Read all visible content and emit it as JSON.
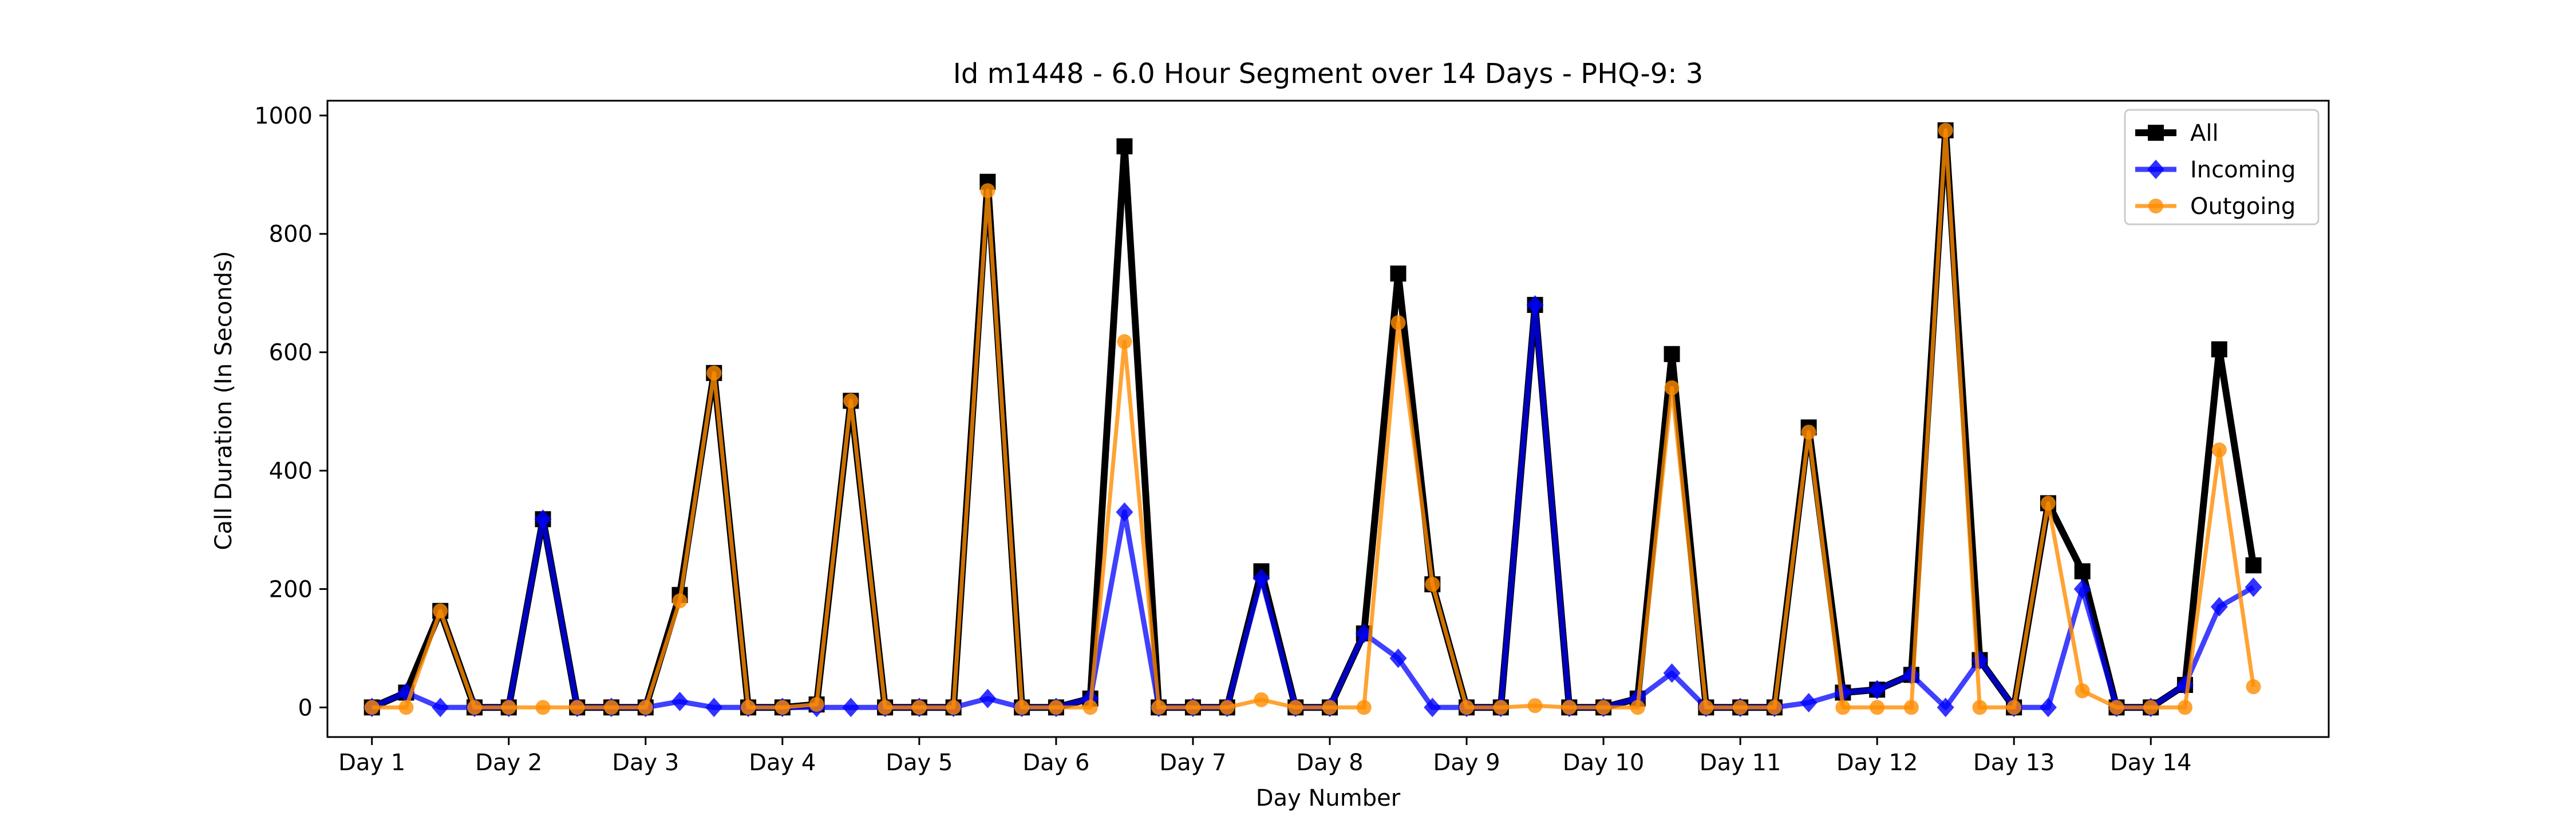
{
  "chart_data": {
    "type": "line",
    "title": "Id m1448 - 6.0 Hour Segment over 14 Days - PHQ-9: 3",
    "xlabel": "Day Number",
    "ylabel": "Call Duration (In Seconds)",
    "xlim": [
      -1.3,
      57.2
    ],
    "ylim": [
      -50,
      1025
    ],
    "x_ticks": [
      {
        "value": 0,
        "label": "Day 1"
      },
      {
        "value": 4,
        "label": "Day 2"
      },
      {
        "value": 8,
        "label": "Day 3"
      },
      {
        "value": 12,
        "label": "Day 4"
      },
      {
        "value": 16,
        "label": "Day 5"
      },
      {
        "value": 20,
        "label": "Day 6"
      },
      {
        "value": 24,
        "label": "Day 7"
      },
      {
        "value": 28,
        "label": "Day 8"
      },
      {
        "value": 32,
        "label": "Day 9"
      },
      {
        "value": 36,
        "label": "Day 10"
      },
      {
        "value": 40,
        "label": "Day 11"
      },
      {
        "value": 44,
        "label": "Day 12"
      },
      {
        "value": 48,
        "label": "Day 13"
      },
      {
        "value": 52,
        "label": "Day 14"
      }
    ],
    "y_ticks": [
      0,
      200,
      400,
      600,
      800,
      1000
    ],
    "grid": false,
    "legend_position": "top-right",
    "series": [
      {
        "name": "All",
        "color": "#000000",
        "marker": "square",
        "values": [
          0,
          25,
          163,
          0,
          0,
          318,
          0,
          0,
          0,
          190,
          565,
          0,
          0,
          5,
          518,
          0,
          0,
          0,
          888,
          0,
          0,
          15,
          948,
          0,
          0,
          0,
          230,
          0,
          0,
          125,
          733,
          208,
          0,
          0,
          680,
          0,
          0,
          15,
          597,
          0,
          0,
          0,
          473,
          25,
          30,
          55,
          975,
          80,
          0,
          345,
          230,
          0,
          0,
          38,
          605,
          240
        ]
      },
      {
        "name": "Incoming",
        "color": "#0000ff",
        "marker": "diamond",
        "values": [
          0,
          25,
          0,
          0,
          0,
          318,
          0,
          0,
          0,
          10,
          0,
          0,
          0,
          0,
          0,
          0,
          0,
          0,
          15,
          0,
          0,
          15,
          330,
          0,
          0,
          0,
          218,
          0,
          0,
          125,
          83,
          0,
          0,
          0,
          680,
          0,
          0,
          15,
          58,
          0,
          0,
          0,
          8,
          25,
          30,
          55,
          0,
          80,
          0,
          0,
          200,
          0,
          0,
          38,
          170,
          203
        ]
      },
      {
        "name": "Outgoing",
        "color": "#ff8c00",
        "marker": "circle",
        "values": [
          0,
          0,
          163,
          0,
          0,
          0,
          0,
          0,
          0,
          180,
          565,
          0,
          0,
          5,
          518,
          0,
          0,
          0,
          873,
          0,
          0,
          0,
          618,
          0,
          0,
          0,
          13,
          0,
          0,
          0,
          650,
          208,
          0,
          0,
          3,
          0,
          0,
          0,
          540,
          0,
          0,
          0,
          465,
          0,
          0,
          0,
          975,
          0,
          0,
          345,
          28,
          0,
          0,
          0,
          435,
          35
        ]
      }
    ]
  }
}
